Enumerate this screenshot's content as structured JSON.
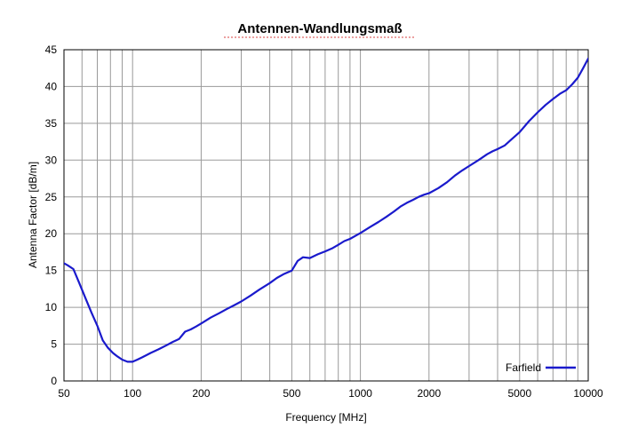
{
  "chart_data": {
    "type": "line",
    "title": "Antennen-Wandlungsmaß",
    "xlabel": "Frequency [MHz]",
    "ylabel": "Antenna Factor [dB/m]",
    "x_scale": "log",
    "xlim": [
      50,
      10000
    ],
    "ylim": [
      0,
      45
    ],
    "x_ticks": [
      50,
      100,
      200,
      500,
      1000,
      2000,
      5000,
      10000
    ],
    "x_tick_labels": [
      "50",
      "100",
      "200",
      "500",
      "1000",
      "2000",
      "5000",
      "10000"
    ],
    "y_ticks": [
      0,
      5,
      10,
      15,
      20,
      25,
      30,
      35,
      40,
      45
    ],
    "y_tick_labels": [
      "0",
      "5",
      "10",
      "15",
      "20",
      "25",
      "30",
      "35",
      "40",
      "45"
    ],
    "grid": true,
    "legend": {
      "position": "bottom-right"
    },
    "series": [
      {
        "name": "Farfield",
        "color": "#1a1acc",
        "x": [
          50,
          52,
          55,
          58,
          62,
          66,
          70,
          74,
          78,
          82,
          86,
          90,
          95,
          100,
          105,
          110,
          115,
          120,
          130,
          140,
          150,
          160,
          170,
          180,
          190,
          200,
          220,
          240,
          260,
          280,
          300,
          330,
          360,
          400,
          430,
          460,
          500,
          530,
          560,
          600,
          650,
          700,
          750,
          800,
          850,
          900,
          1000,
          1100,
          1200,
          1300,
          1400,
          1500,
          1600,
          1700,
          1800,
          1900,
          2000,
          2200,
          2400,
          2600,
          2800,
          3000,
          3300,
          3600,
          3800,
          4000,
          4300,
          4600,
          5000,
          5500,
          6000,
          6500,
          7000,
          7500,
          8000,
          8500,
          9000,
          9500,
          10000
        ],
        "y": [
          16.0,
          15.7,
          15.2,
          13.5,
          11.3,
          9.3,
          7.5,
          5.5,
          4.5,
          3.8,
          3.3,
          2.9,
          2.6,
          2.6,
          2.9,
          3.2,
          3.5,
          3.8,
          4.3,
          4.8,
          5.3,
          5.7,
          6.7,
          7.0,
          7.4,
          7.8,
          8.6,
          9.2,
          9.8,
          10.3,
          10.8,
          11.6,
          12.4,
          13.3,
          14.0,
          14.5,
          15.0,
          16.3,
          16.8,
          16.7,
          17.2,
          17.6,
          18.0,
          18.5,
          19.0,
          19.3,
          20.1,
          20.9,
          21.6,
          22.3,
          23.0,
          23.7,
          24.2,
          24.6,
          25.0,
          25.3,
          25.5,
          26.2,
          27.0,
          27.9,
          28.6,
          29.2,
          30.0,
          30.8,
          31.2,
          31.5,
          32.0,
          32.8,
          33.8,
          35.3,
          36.5,
          37.5,
          38.3,
          39.0,
          39.5,
          40.3,
          41.2,
          42.5,
          43.8
        ]
      }
    ]
  }
}
